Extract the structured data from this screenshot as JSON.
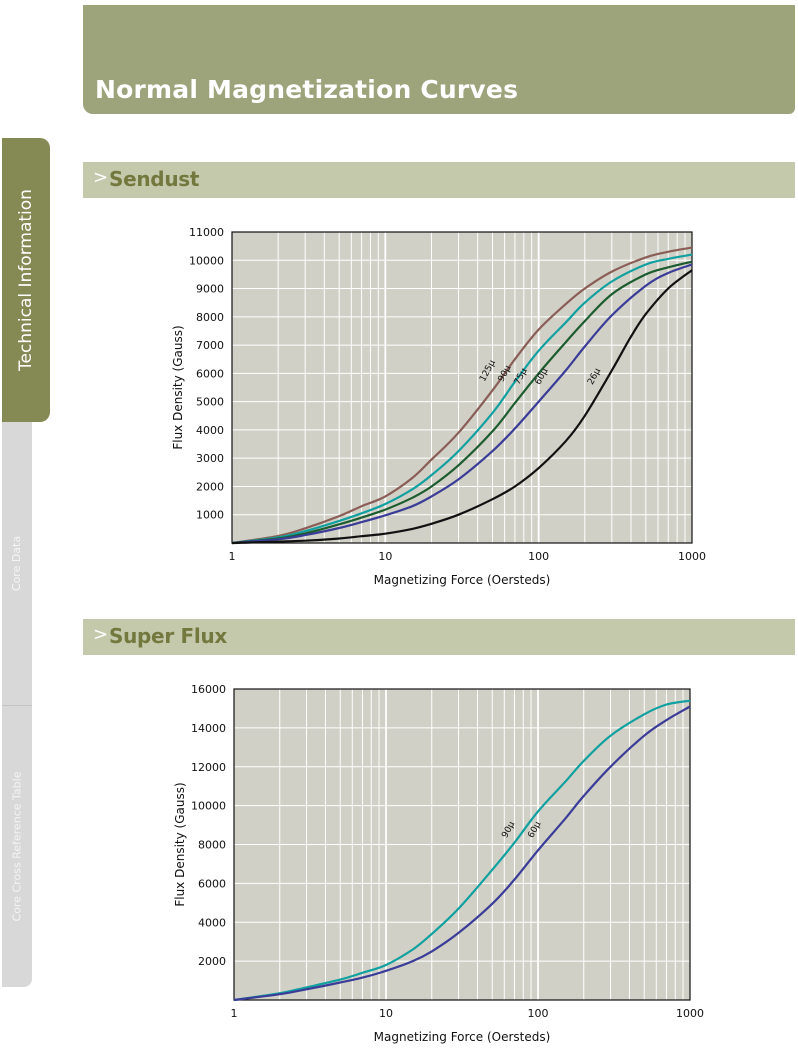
{
  "page": {
    "title": "Normal Magnetization Curves"
  },
  "sidebar": {
    "tabs": [
      {
        "label": "Technical Information",
        "active": true
      },
      {
        "label": "Core Data",
        "active": false
      },
      {
        "label": "Core Cross Reference Table",
        "active": false
      }
    ]
  },
  "sections": [
    {
      "chevron": ">",
      "title": "Sendust"
    },
    {
      "chevron": ">",
      "title": "Super Flux"
    }
  ],
  "colors": {
    "header": "#9da47c",
    "active_tab": "#858a54",
    "section_bar": "#c5c9ab",
    "plot_bg": "#d0d0c6",
    "brown": "#8a5e56",
    "teal": "#11a0a0",
    "darkgreen": "#1c5c2e",
    "navy": "#3a3c98",
    "black": "#111111"
  },
  "chart_data": [
    {
      "type": "line",
      "xscale": "log",
      "xlim": [
        1,
        1000
      ],
      "ylim": [
        0,
        11000
      ],
      "xlabel": "Magnetizing Force (Oersteds)",
      "ylabel": "Flux  Density (Gauss)",
      "xticks": [
        "1",
        "10",
        "100",
        "1000"
      ],
      "yticks": [
        "1000",
        "2000",
        "3000",
        "4000",
        "5000",
        "6000",
        "7000",
        "8000",
        "9000",
        "10000",
        "11000"
      ],
      "grid": true,
      "series": [
        {
          "name": "125µ",
          "color": "#8a5e56",
          "label_at": [
            48,
            6050
          ],
          "points": [
            [
              1,
              0
            ],
            [
              2,
              250
            ],
            [
              3,
              520
            ],
            [
              5,
              950
            ],
            [
              7,
              1300
            ],
            [
              10,
              1650
            ],
            [
              15,
              2300
            ],
            [
              20,
              2950
            ],
            [
              30,
              3900
            ],
            [
              50,
              5400
            ],
            [
              70,
              6500
            ],
            [
              100,
              7550
            ],
            [
              150,
              8450
            ],
            [
              200,
              9000
            ],
            [
              300,
              9600
            ],
            [
              500,
              10100
            ],
            [
              700,
              10300
            ],
            [
              1000,
              10450
            ]
          ]
        },
        {
          "name": "90µ",
          "color": "#11a0a0",
          "label_at": [
            62,
            5950
          ],
          "points": [
            [
              1,
              0
            ],
            [
              2,
              200
            ],
            [
              3,
              420
            ],
            [
              5,
              780
            ],
            [
              7,
              1050
            ],
            [
              10,
              1380
            ],
            [
              15,
              1900
            ],
            [
              20,
              2400
            ],
            [
              30,
              3250
            ],
            [
              50,
              4600
            ],
            [
              70,
              5700
            ],
            [
              100,
              6800
            ],
            [
              150,
              7800
            ],
            [
              200,
              8500
            ],
            [
              300,
              9250
            ],
            [
              500,
              9850
            ],
            [
              700,
              10050
            ],
            [
              1000,
              10200
            ]
          ]
        },
        {
          "name": "75µ",
          "color": "#1c5c2e",
          "label_at": [
            79,
            5850
          ],
          "points": [
            [
              1,
              0
            ],
            [
              2,
              160
            ],
            [
              3,
              340
            ],
            [
              5,
              660
            ],
            [
              7,
              900
            ],
            [
              10,
              1180
            ],
            [
              15,
              1600
            ],
            [
              20,
              2000
            ],
            [
              30,
              2750
            ],
            [
              50,
              3950
            ],
            [
              70,
              4950
            ],
            [
              100,
              6000
            ],
            [
              150,
              7100
            ],
            [
              200,
              7850
            ],
            [
              300,
              8800
            ],
            [
              500,
              9500
            ],
            [
              700,
              9750
            ],
            [
              1000,
              9950
            ]
          ]
        },
        {
          "name": "60µ",
          "color": "#3a3c98",
          "label_at": [
            108,
            5850
          ],
          "points": [
            [
              1,
              0
            ],
            [
              2,
              130
            ],
            [
              3,
              280
            ],
            [
              5,
              530
            ],
            [
              7,
              740
            ],
            [
              10,
              980
            ],
            [
              15,
              1300
            ],
            [
              20,
              1650
            ],
            [
              30,
              2250
            ],
            [
              50,
              3250
            ],
            [
              70,
              4050
            ],
            [
              100,
              5000
            ],
            [
              150,
              6100
            ],
            [
              200,
              6950
            ],
            [
              300,
              8050
            ],
            [
              500,
              9100
            ],
            [
              700,
              9550
            ],
            [
              1000,
              9850
            ]
          ]
        },
        {
          "name": "26µ",
          "color": "#111111",
          "label_at": [
            238,
            5850
          ],
          "points": [
            [
              1,
              0
            ],
            [
              3,
              80
            ],
            [
              5,
              160
            ],
            [
              7,
              240
            ],
            [
              10,
              330
            ],
            [
              15,
              500
            ],
            [
              20,
              680
            ],
            [
              30,
              1000
            ],
            [
              50,
              1550
            ],
            [
              70,
              2000
            ],
            [
              100,
              2650
            ],
            [
              150,
              3600
            ],
            [
              200,
              4500
            ],
            [
              300,
              6100
            ],
            [
              400,
              7300
            ],
            [
              500,
              8100
            ],
            [
              700,
              9000
            ],
            [
              1000,
              9650
            ]
          ]
        }
      ]
    },
    {
      "type": "line",
      "xscale": "log",
      "xlim": [
        1,
        1000
      ],
      "ylim": [
        0,
        16000
      ],
      "xlabel": "Magnetizing Force (Oersteds)",
      "ylabel": "Flux  Density (Gauss)",
      "xticks": [
        "1",
        "10",
        "100",
        "1000"
      ],
      "yticks": [
        "2000",
        "4000",
        "6000",
        "8000",
        "10000",
        "12000",
        "14000",
        "16000"
      ],
      "grid": true,
      "series": [
        {
          "name": "90µ",
          "color": "#11a0a0",
          "label_at": [
            66,
            8700
          ],
          "points": [
            [
              1,
              0
            ],
            [
              2,
              350
            ],
            [
              3,
              650
            ],
            [
              5,
              1050
            ],
            [
              7,
              1400
            ],
            [
              10,
              1800
            ],
            [
              15,
              2600
            ],
            [
              20,
              3400
            ],
            [
              30,
              4700
            ],
            [
              50,
              6700
            ],
            [
              70,
              8100
            ],
            [
              100,
              9700
            ],
            [
              150,
              11200
            ],
            [
              200,
              12300
            ],
            [
              300,
              13600
            ],
            [
              500,
              14700
            ],
            [
              700,
              15200
            ],
            [
              1000,
              15400
            ]
          ]
        },
        {
          "name": "60µ",
          "color": "#3a3c98",
          "label_at": [
            98,
            8700
          ],
          "points": [
            [
              1,
              0
            ],
            [
              2,
              300
            ],
            [
              3,
              550
            ],
            [
              5,
              900
            ],
            [
              7,
              1150
            ],
            [
              10,
              1500
            ],
            [
              15,
              2000
            ],
            [
              20,
              2500
            ],
            [
              30,
              3450
            ],
            [
              50,
              4950
            ],
            [
              70,
              6200
            ],
            [
              100,
              7700
            ],
            [
              150,
              9300
            ],
            [
              200,
              10500
            ],
            [
              300,
              12000
            ],
            [
              500,
              13600
            ],
            [
              700,
              14400
            ],
            [
              1000,
              15100
            ]
          ]
        }
      ]
    }
  ]
}
